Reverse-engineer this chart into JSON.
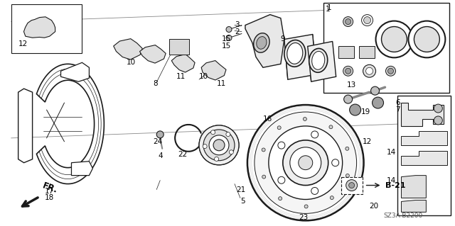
{
  "bg_color": "#ffffff",
  "diagram_code": "SZ3A-B2200",
  "direction_label": "FR.",
  "b21_label": "B-21",
  "line_color": "#1a1a1a",
  "text_color": "#000000",
  "font_size_label": 7.5
}
